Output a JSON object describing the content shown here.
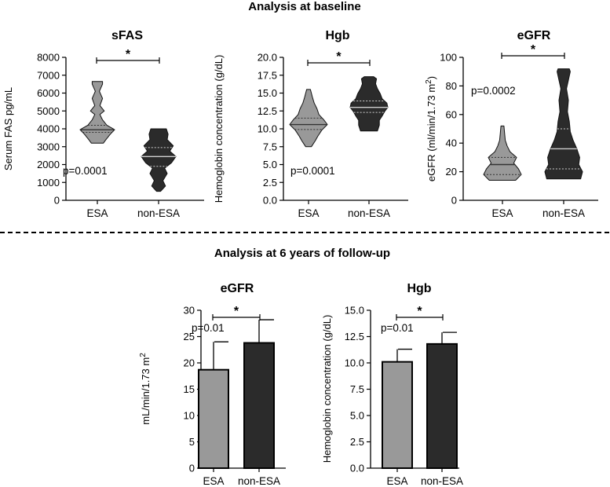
{
  "sections": {
    "baseline_title": "Analysis at baseline",
    "followup_title": "Analysis at 6 years of follow-up"
  },
  "colors": {
    "esa": "#999999",
    "non_esa": "#2b2b2b",
    "axis": "#000000"
  },
  "chart_data": [
    {
      "type": "violin",
      "title": "sFAS",
      "ylabel": "Serum FAS pg/mL",
      "categories": [
        "ESA",
        "non-ESA"
      ],
      "ylim": [
        0,
        8000
      ],
      "yticks": [
        0,
        1000,
        2000,
        3000,
        4000,
        5000,
        6000,
        7000,
        8000
      ],
      "p_value": "p=0.0001",
      "significance": "*",
      "series": [
        {
          "values": [
            3200,
            3500,
            3800,
            3950,
            4000,
            4200,
            4600,
            5000,
            5800,
            6600
          ],
          "profile": [
            [
              3200,
              0.35
            ],
            [
              3400,
              0.5
            ],
            [
              3700,
              0.75
            ],
            [
              3950,
              1.0
            ],
            [
              4200,
              0.55
            ],
            [
              4500,
              0.3
            ],
            [
              4800,
              0.15
            ],
            [
              5000,
              0.4
            ],
            [
              5300,
              0.15
            ],
            [
              5700,
              0.3
            ],
            [
              6100,
              0.12
            ],
            [
              6500,
              0.3
            ],
            [
              6650,
              0.3
            ]
          ],
          "median": 3950,
          "q1": 3800,
          "q3": 4200
        },
        {
          "values": [
            500,
            900,
            1500,
            2000,
            2400,
            2600,
            3000,
            3500,
            4000
          ],
          "profile": [
            [
              500,
              0.12
            ],
            [
              800,
              0.4
            ],
            [
              1100,
              0.25
            ],
            [
              1500,
              0.5
            ],
            [
              1800,
              0.35
            ],
            [
              2100,
              0.75
            ],
            [
              2450,
              1.0
            ],
            [
              2750,
              0.65
            ],
            [
              3050,
              0.85
            ],
            [
              3400,
              0.5
            ],
            [
              3700,
              0.55
            ],
            [
              4000,
              0.45
            ]
          ],
          "median": 2450,
          "q1": 1900,
          "q3": 2950
        }
      ]
    },
    {
      "type": "violin",
      "title": "Hgb",
      "ylabel": "Hemoglobin concentration (g/dL)",
      "categories": [
        "ESA",
        "non-ESA"
      ],
      "ylim": [
        0,
        20
      ],
      "yticks": [
        "0.0",
        "2.5",
        "5.0",
        "7.5",
        "10.0",
        "12.5",
        "15.0",
        "17.5",
        "20.0"
      ],
      "p_value": "p=0.0001",
      "significance": "*",
      "series": [
        {
          "values": [
            7.5,
            9.0,
            10.0,
            10.5,
            11.0,
            12.0,
            13.5,
            15.5
          ],
          "profile": [
            [
              7.5,
              0.15
            ],
            [
              8.3,
              0.35
            ],
            [
              9.0,
              0.5
            ],
            [
              9.8,
              0.7
            ],
            [
              10.6,
              1.0
            ],
            [
              11.3,
              0.8
            ],
            [
              12.0,
              0.55
            ],
            [
              12.8,
              0.45
            ],
            [
              13.6,
              0.3
            ],
            [
              14.5,
              0.2
            ],
            [
              15.5,
              0.1
            ]
          ],
          "median": 10.6,
          "q1": 9.9,
          "q3": 11.5
        },
        {
          "values": [
            9.8,
            11.0,
            12.0,
            13.0,
            13.5,
            14.5,
            16.0,
            17.3
          ],
          "profile": [
            [
              9.7,
              0.45
            ],
            [
              10.5,
              0.55
            ],
            [
              11.2,
              0.55
            ],
            [
              11.8,
              0.7
            ],
            [
              12.5,
              0.85
            ],
            [
              13.0,
              1.0
            ],
            [
              13.6,
              0.95
            ],
            [
              14.2,
              0.7
            ],
            [
              14.9,
              0.6
            ],
            [
              15.6,
              0.45
            ],
            [
              16.3,
              0.35
            ],
            [
              17.0,
              0.4
            ],
            [
              17.3,
              0.25
            ]
          ],
          "median": 13.0,
          "q1": 12.3,
          "q3": 13.9
        }
      ]
    },
    {
      "type": "violin",
      "title": "eGFR",
      "ylabel": "eGFR (ml/min/1.73 m²)",
      "categories": [
        "ESA",
        "non-ESA"
      ],
      "ylim": [
        0,
        100
      ],
      "yticks": [
        0,
        20,
        40,
        60,
        80,
        100
      ],
      "p_value": "p=0.0002",
      "significance": "*",
      "series": [
        {
          "values": [
            15,
            18,
            22,
            26,
            30,
            35,
            45,
            52
          ],
          "profile": [
            [
              14,
              0.7
            ],
            [
              18,
              1.0
            ],
            [
              22,
              0.85
            ],
            [
              26,
              0.6
            ],
            [
              30,
              0.75
            ],
            [
              34,
              0.4
            ],
            [
              38,
              0.25
            ],
            [
              42,
              0.15
            ],
            [
              46,
              0.12
            ],
            [
              52,
              0.08
            ]
          ],
          "median": 25,
          "q1": 18,
          "q3": 30
        },
        {
          "values": [
            15,
            20,
            25,
            30,
            36,
            45,
            55,
            70,
            91
          ],
          "profile": [
            [
              15,
              0.9
            ],
            [
              20,
              1.0
            ],
            [
              25,
              0.8
            ],
            [
              30,
              0.85
            ],
            [
              36,
              0.7
            ],
            [
              42,
              0.5
            ],
            [
              48,
              0.35
            ],
            [
              55,
              0.3
            ],
            [
              62,
              0.2
            ],
            [
              70,
              0.25
            ],
            [
              78,
              0.15
            ],
            [
              84,
              0.25
            ],
            [
              90,
              0.35
            ],
            [
              92,
              0.3
            ]
          ],
          "median": 36,
          "q1": 22,
          "q3": 50
        }
      ]
    },
    {
      "type": "bar",
      "title": "eGFR",
      "ylabel": "mL/min/1.73 m²",
      "categories": [
        "ESA",
        "non-ESA"
      ],
      "values": [
        18.7,
        23.8
      ],
      "errors": [
        5.3,
        4.4
      ],
      "ylim": [
        0,
        30
      ],
      "yticks": [
        0,
        5,
        10,
        15,
        20,
        25,
        30
      ],
      "p_value": "p=0.01",
      "significance": "*"
    },
    {
      "type": "bar",
      "title": "Hgb",
      "ylabel": "Hemoglobin concentration (g/dL)",
      "categories": [
        "ESA",
        "non-ESA"
      ],
      "values": [
        10.1,
        11.8
      ],
      "errors": [
        1.2,
        1.1
      ],
      "ylim": [
        0,
        15
      ],
      "yticks": [
        "0.0",
        "2.5",
        "5.0",
        "7.5",
        "10.0",
        "12.5",
        "15.0"
      ],
      "p_value": "p=0.01",
      "significance": "*"
    }
  ]
}
